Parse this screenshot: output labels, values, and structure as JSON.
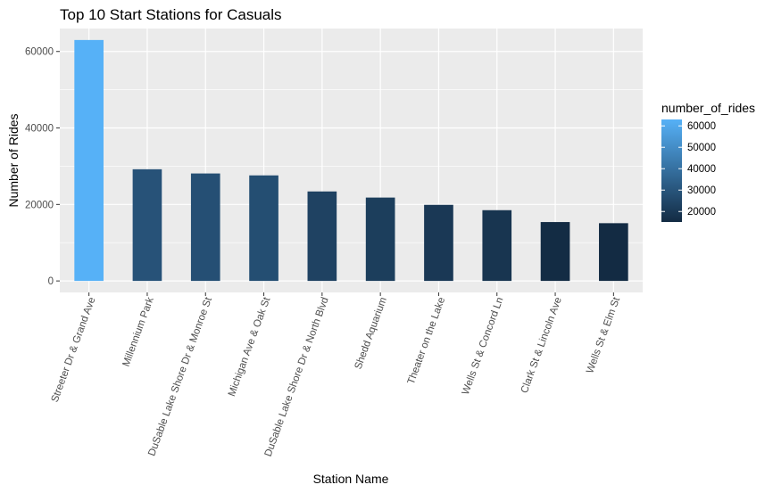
{
  "chart_data": {
    "type": "bar",
    "title": "Top 10 Start Stations for Casuals",
    "xlabel": "Station Name",
    "ylabel": "Number of Rides",
    "categories": [
      "Streeter Dr & Grand Ave",
      "Millennium Park",
      "DuSable Lake Shore Dr & Monroe St",
      "Michigan Ave & Oak St",
      "DuSable Lake Shore Dr & North Blvd",
      "Shedd Aquarium",
      "Theater on the Lake",
      "Wells St & Concord Ln",
      "Clark St & Lincoln Ave",
      "Wells St & Elm St"
    ],
    "values": [
      63000,
      29200,
      28100,
      27600,
      23400,
      21800,
      19900,
      18500,
      15400,
      15100
    ],
    "ylim": [
      -3000,
      66000
    ],
    "yticks": [
      0,
      20000,
      40000,
      60000
    ],
    "ytick_labels": [
      "0",
      "20000",
      "40000",
      "60000"
    ],
    "grid": true,
    "legend": {
      "title": "number_of_rides",
      "position": "right",
      "ticks": [
        20000,
        30000,
        40000,
        50000,
        60000
      ],
      "tick_labels": [
        "20000",
        "30000",
        "40000",
        "50000",
        "60000"
      ],
      "range": [
        15100,
        63000
      ],
      "color_low": "#132B43",
      "color_high": "#56B1F7"
    },
    "colors": {
      "panel_background": "#EBEBEB",
      "grid_major": "#FFFFFF",
      "low": "#132B43",
      "high": "#56B1F7"
    }
  }
}
